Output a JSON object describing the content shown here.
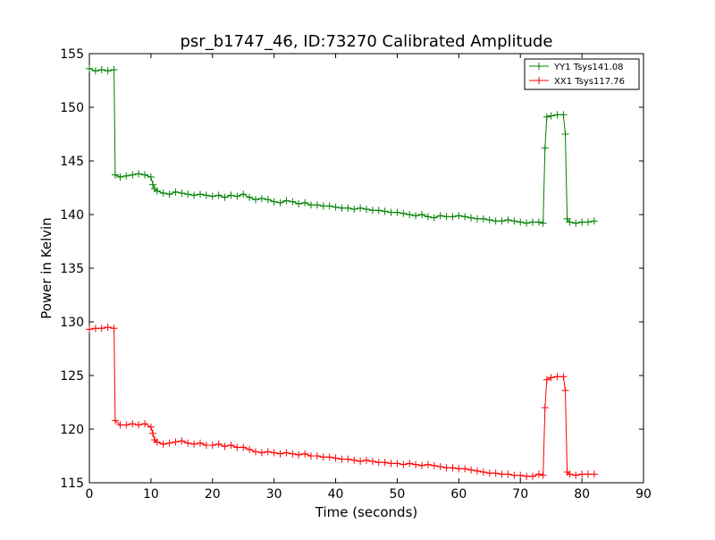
{
  "chart_data": {
    "type": "line",
    "title": "psr_b1747_46, ID:73270 Calibrated Amplitude",
    "xlabel": "Time (seconds)",
    "ylabel": "Power in Kelvin",
    "xlim": [
      0,
      90
    ],
    "ylim": [
      115,
      155
    ],
    "xticks": [
      "0",
      "10",
      "20",
      "30",
      "40",
      "50",
      "60",
      "70",
      "80",
      "90"
    ],
    "yticks": [
      "115",
      "120",
      "125",
      "130",
      "135",
      "140",
      "145",
      "150",
      "155"
    ],
    "grid": false,
    "legend_position": "top-right",
    "series": [
      {
        "name": "YY1 Tsys141.08",
        "color": "#008000",
        "marker": "+",
        "x": [
          0,
          1,
          2,
          3,
          4,
          4.2,
          5,
          6,
          7,
          8,
          9,
          10,
          10.3,
          10.6,
          11,
          12,
          13,
          14,
          15,
          16,
          17,
          18,
          19,
          20,
          21,
          22,
          23,
          24,
          25,
          26,
          27,
          28,
          29,
          30,
          31,
          32,
          33,
          34,
          35,
          36,
          37,
          38,
          39,
          40,
          41,
          42,
          43,
          44,
          45,
          46,
          47,
          48,
          49,
          50,
          51,
          52,
          53,
          54,
          55,
          56,
          57,
          58,
          59,
          60,
          61,
          62,
          63,
          64,
          65,
          66,
          67,
          68,
          69,
          70,
          71,
          72,
          73,
          73.7,
          74,
          74.3,
          75,
          76,
          77,
          77.3,
          77.6,
          78,
          79,
          80,
          81,
          82
        ],
        "y": [
          153.6,
          153.4,
          153.5,
          153.4,
          153.5,
          143.7,
          143.5,
          143.6,
          143.7,
          143.8,
          143.7,
          143.5,
          142.8,
          142.4,
          142.2,
          142.0,
          141.9,
          142.1,
          142.0,
          141.9,
          141.8,
          141.9,
          141.8,
          141.7,
          141.8,
          141.6,
          141.8,
          141.7,
          141.9,
          141.6,
          141.4,
          141.5,
          141.4,
          141.2,
          141.1,
          141.3,
          141.2,
          141.0,
          141.1,
          140.9,
          140.9,
          140.8,
          140.8,
          140.7,
          140.6,
          140.6,
          140.5,
          140.6,
          140.5,
          140.4,
          140.4,
          140.3,
          140.2,
          140.2,
          140.1,
          140.0,
          139.9,
          140.0,
          139.8,
          139.7,
          139.9,
          139.8,
          139.8,
          139.9,
          139.8,
          139.7,
          139.6,
          139.6,
          139.5,
          139.4,
          139.4,
          139.5,
          139.4,
          139.3,
          139.2,
          139.3,
          139.3,
          139.2,
          146.2,
          149.1,
          149.2,
          149.3,
          149.3,
          147.5,
          139.6,
          139.3,
          139.2,
          139.3,
          139.3,
          139.4
        ]
      },
      {
        "name": "XX1 Tsys117.76",
        "color": "#ff0000",
        "marker": "+",
        "x": [
          0,
          1,
          2,
          3,
          4,
          4.2,
          5,
          6,
          7,
          8,
          9,
          10,
          10.3,
          10.6,
          11,
          12,
          13,
          14,
          15,
          16,
          17,
          18,
          19,
          20,
          21,
          22,
          23,
          24,
          25,
          26,
          27,
          28,
          29,
          30,
          31,
          32,
          33,
          34,
          35,
          36,
          37,
          38,
          39,
          40,
          41,
          42,
          43,
          44,
          45,
          46,
          47,
          48,
          49,
          50,
          51,
          52,
          53,
          54,
          55,
          56,
          57,
          58,
          59,
          60,
          61,
          62,
          63,
          64,
          65,
          66,
          67,
          68,
          69,
          70,
          71,
          72,
          73,
          73.7,
          74,
          74.3,
          75,
          76,
          77,
          77.3,
          77.6,
          78,
          79,
          80,
          81,
          82
        ],
        "y": [
          129.3,
          129.4,
          129.4,
          129.5,
          129.4,
          120.8,
          120.4,
          120.4,
          120.5,
          120.4,
          120.5,
          120.2,
          119.6,
          119.0,
          118.8,
          118.6,
          118.7,
          118.8,
          118.9,
          118.7,
          118.6,
          118.7,
          118.5,
          118.5,
          118.6,
          118.4,
          118.5,
          118.3,
          118.3,
          118.1,
          117.9,
          117.8,
          117.9,
          117.8,
          117.7,
          117.8,
          117.7,
          117.6,
          117.7,
          117.5,
          117.5,
          117.4,
          117.4,
          117.3,
          117.2,
          117.2,
          117.1,
          117.0,
          117.1,
          117.0,
          116.9,
          116.9,
          116.8,
          116.8,
          116.7,
          116.8,
          116.7,
          116.6,
          116.7,
          116.6,
          116.5,
          116.4,
          116.4,
          116.3,
          116.3,
          116.2,
          116.1,
          116.0,
          115.9,
          115.9,
          115.8,
          115.8,
          115.7,
          115.7,
          115.6,
          115.6,
          115.8,
          115.7,
          122.0,
          124.6,
          124.8,
          124.9,
          124.9,
          123.6,
          116.0,
          115.8,
          115.7,
          115.8,
          115.8,
          115.8
        ]
      }
    ]
  }
}
